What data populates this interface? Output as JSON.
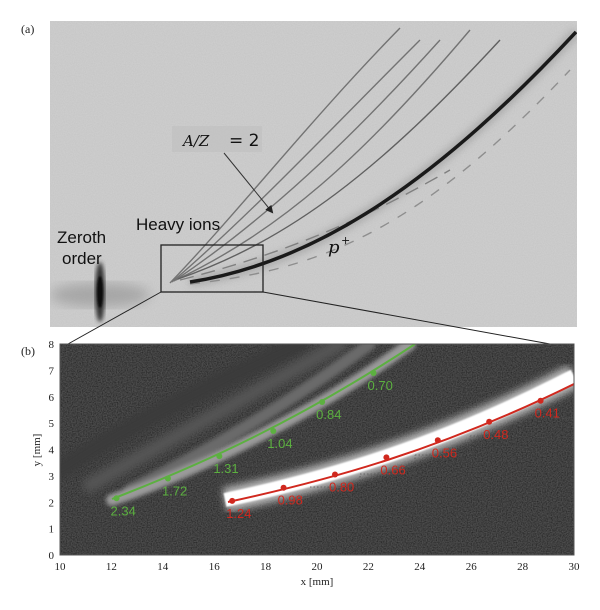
{
  "panel_a": {
    "label": "(a)",
    "annotations": {
      "zeroth_order_line1": "Zeroth",
      "zeroth_order_line2": "order",
      "heavy_ions": "Heavy ions",
      "az_lhs": "A/Z",
      "az_rhs": "= 2",
      "proton": "p",
      "proton_sup": "+"
    }
  },
  "panel_b": {
    "label": "(b)"
  },
  "chart_data": {
    "type": "scatter",
    "title": "",
    "xlabel": "x [mm]",
    "ylabel": "y [mm]",
    "xlim": [
      10,
      30
    ],
    "ylim": [
      0,
      8
    ],
    "xticks": [
      "10",
      "12",
      "14",
      "16",
      "18",
      "20",
      "22",
      "24",
      "26",
      "28",
      "30"
    ],
    "yticks": [
      "0",
      "1",
      "2",
      "3",
      "4",
      "5",
      "6",
      "7",
      "8"
    ],
    "grid": false,
    "background": "image (dark, thresholded ion tracks)",
    "series": [
      {
        "name": "A/Z = 2 fit",
        "color": "#5cb040",
        "x": [
          12.2,
          14.2,
          16.2,
          18.3,
          20.2,
          22.2
        ],
        "y": [
          2.15,
          2.9,
          3.75,
          4.7,
          5.8,
          6.9
        ],
        "labels": [
          "2.34",
          "1.72",
          "1.31",
          "1.04",
          "0.84",
          "0.70"
        ]
      },
      {
        "name": "p+ fit",
        "color": "#d0281e",
        "x": [
          16.7,
          18.7,
          20.7,
          22.7,
          24.7,
          26.7,
          28.7
        ],
        "y": [
          2.05,
          2.55,
          3.05,
          3.7,
          4.35,
          5.05,
          5.85
        ],
        "labels": [
          "1.24",
          "0.98",
          "0.80",
          "0.66",
          "0.56",
          "0.48",
          "0.41"
        ]
      }
    ]
  }
}
